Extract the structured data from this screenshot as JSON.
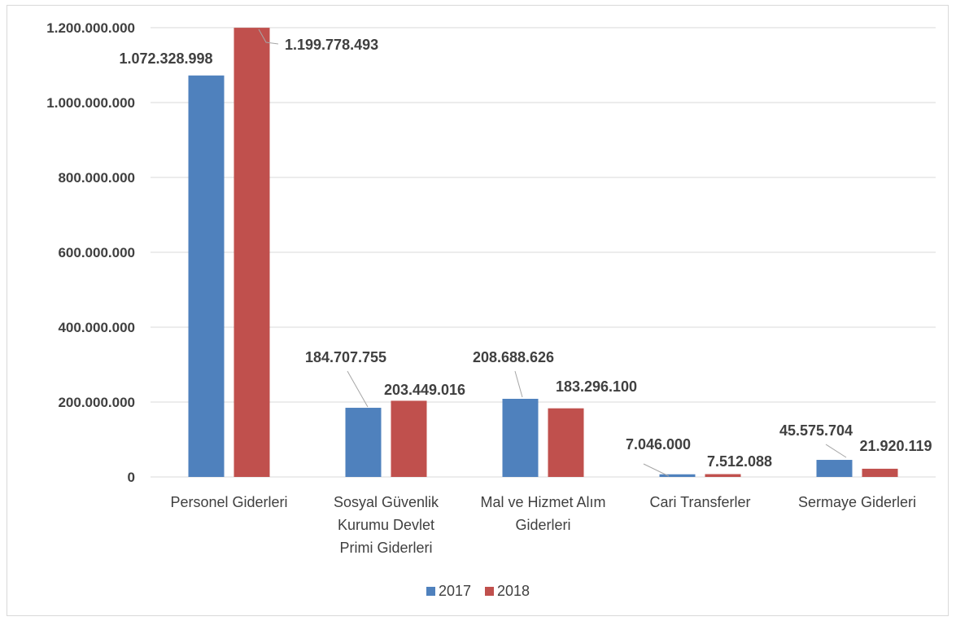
{
  "chart_data": {
    "type": "bar",
    "categories": [
      [
        "Personel Giderleri"
      ],
      [
        "Sosyal Güvenlik",
        "Kurumu Devlet",
        "Primi Giderleri"
      ],
      [
        "Mal ve Hizmet Alım",
        "Giderleri"
      ],
      [
        "Cari Transferler"
      ],
      [
        "Sermaye Giderleri"
      ]
    ],
    "series": [
      {
        "name": "2017",
        "color": "#4f81bd",
        "values": [
          1072328998,
          184707755,
          208688626,
          7046000,
          45575704
        ],
        "labels": [
          "1.072.328.998",
          "184.707.755",
          "208.688.626",
          "7.046.000",
          "45.575.704"
        ]
      },
      {
        "name": "2018",
        "color": "#c0504d",
        "values": [
          1199778493,
          203449016,
          183296100,
          7512088,
          21920119
        ],
        "labels": [
          "1.199.778.493",
          "203.449.016",
          "183.296.100",
          "7.512.088",
          "21.920.119"
        ]
      }
    ],
    "yticks": [
      "0",
      "200.000.000",
      "400.000.000",
      "600.000.000",
      "800.000.000",
      "1.000.000.000",
      "1.200.000.000"
    ],
    "ylim": [
      0,
      1200000000
    ],
    "grid": true,
    "legend": "bottom"
  }
}
